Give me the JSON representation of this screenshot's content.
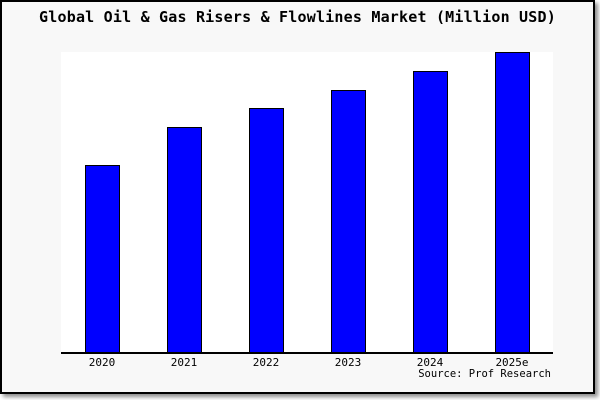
{
  "title": "Global Oil & Gas Risers & Flowlines Market (Million USD)",
  "source_note": "Source: Prof Research",
  "colors": {
    "bar_fill": "#0000ff",
    "bar_edge": "#000000",
    "plot_background": "#ffffff",
    "canvas_background": "#f8f8f8",
    "frame_border": "#000000",
    "text": "#000000"
  },
  "chart_data": {
    "type": "bar",
    "title": "Global Oil & Gas Risers & Flowlines Market (Million USD)",
    "categories": [
      "2020",
      "2021",
      "2022",
      "2023",
      "2024",
      "2025e"
    ],
    "values": [
      500,
      600,
      650,
      700,
      750,
      800
    ],
    "xlabel": "",
    "ylabel": "",
    "ylim": [
      0,
      800
    ],
    "grid": false,
    "legend": false,
    "y_axis_labels_visible": false,
    "annotation": "Source: Prof Research"
  }
}
